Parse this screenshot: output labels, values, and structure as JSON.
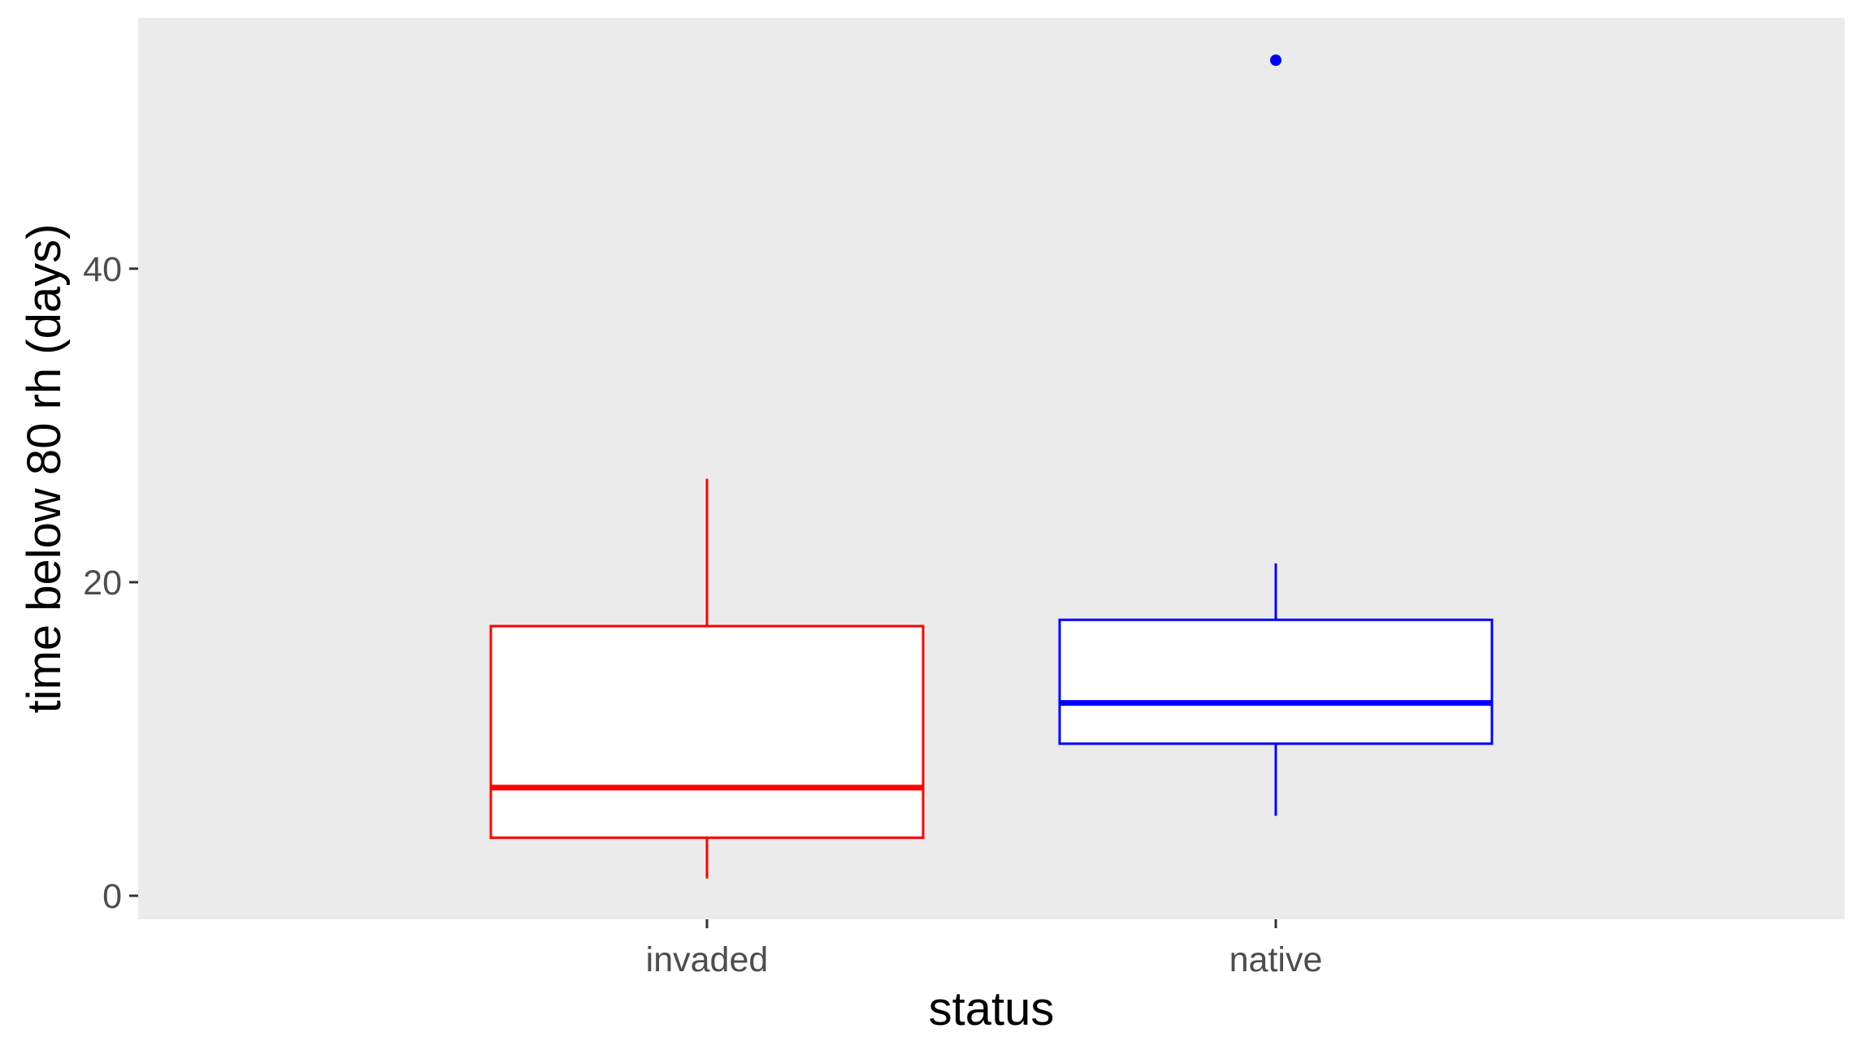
{
  "chart_data": {
    "type": "boxplot",
    "title": "",
    "xlabel": "status",
    "ylabel": "time below 80 rh (days)",
    "categories": [
      "invaded",
      "native"
    ],
    "ylim": [
      -1.5,
      56
    ],
    "yticks": [
      0,
      20,
      40
    ],
    "ytick_labels": [
      "0",
      "20",
      "40"
    ],
    "grid": false,
    "legend": "none",
    "panel_background": "#ebebeb",
    "boxes": [
      {
        "category": "invaded",
        "color": "#ff0000",
        "whisker_low": 1.1,
        "q1": 3.7,
        "median": 6.9,
        "q3": 17.2,
        "whisker_high": 26.6,
        "outliers": []
      },
      {
        "category": "native",
        "color": "#0000ff",
        "whisker_low": 5.1,
        "q1": 9.7,
        "median": 12.3,
        "q3": 17.6,
        "whisker_high": 21.2,
        "outliers": [
          53.3
        ]
      }
    ]
  }
}
